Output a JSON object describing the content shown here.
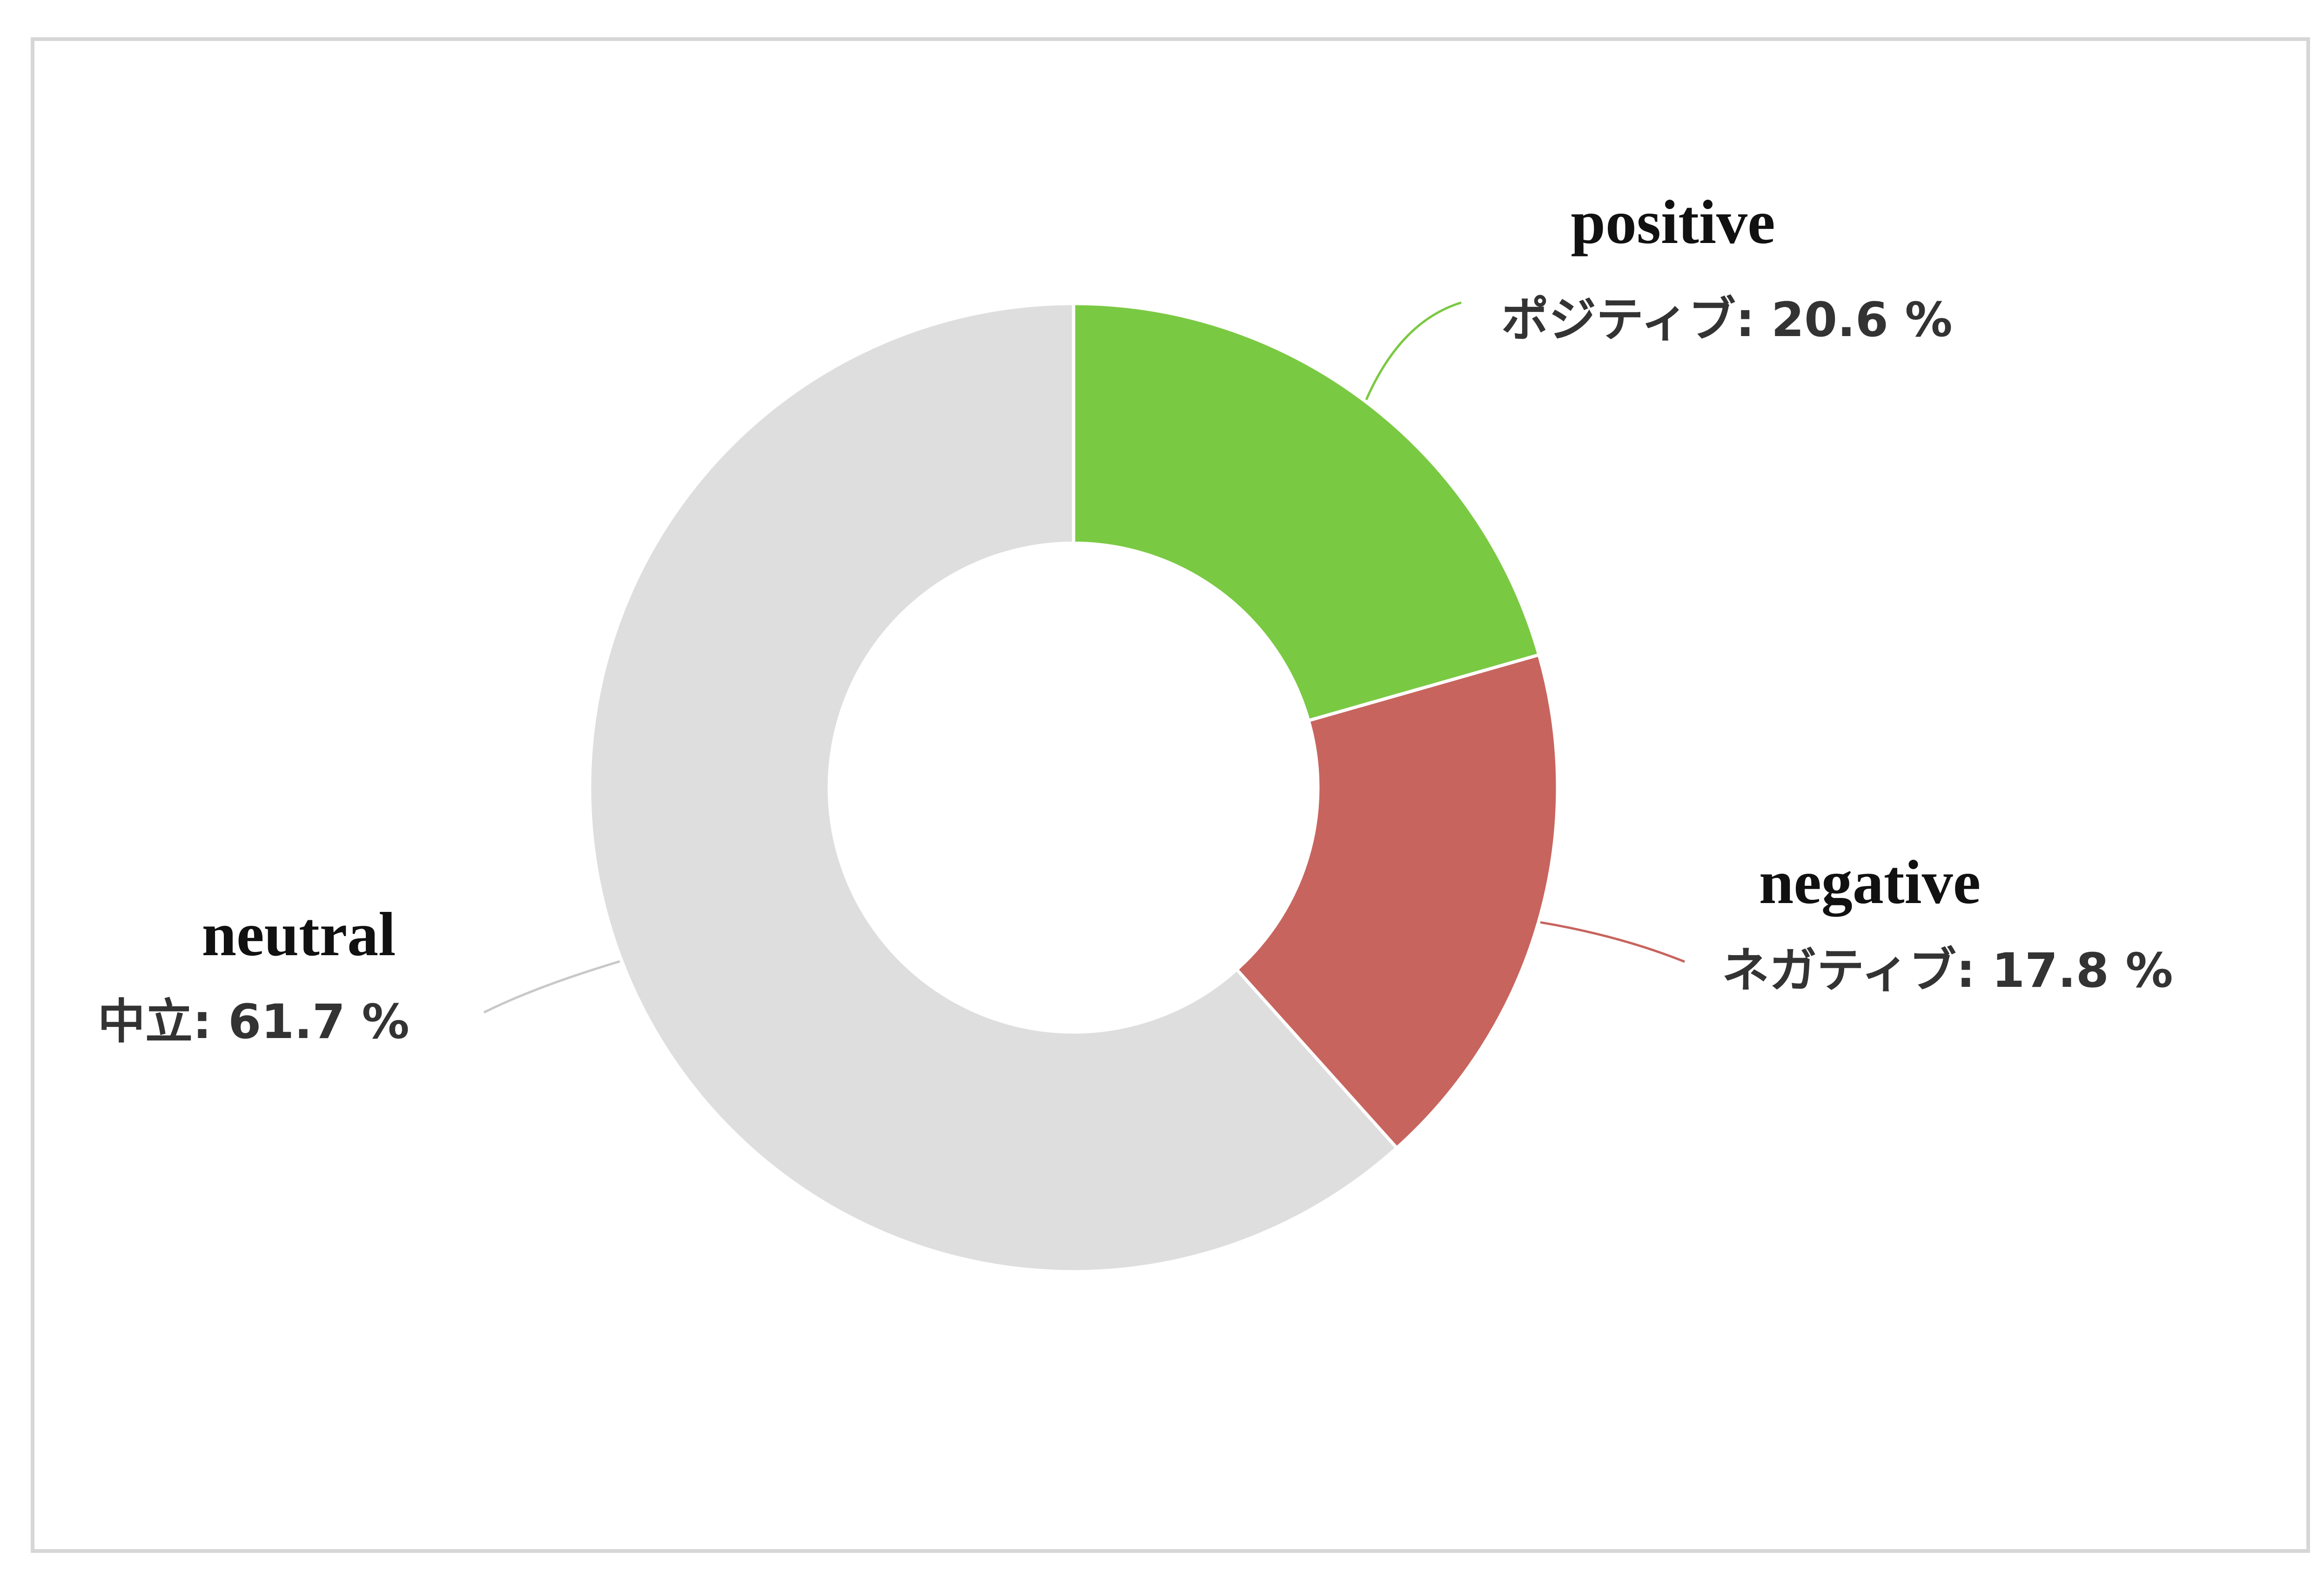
{
  "chart_data": {
    "type": "pie",
    "subtype": "donut",
    "title": "",
    "legend": "none",
    "start_angle_deg": 0,
    "direction": "clockwise",
    "slices": [
      {
        "key": "positive",
        "name": "positive",
        "label": "ポジティブ",
        "value": 20.6,
        "display": "ポジティブ: 20.6 %",
        "color": "#7ac943"
      },
      {
        "key": "negative",
        "name": "negative",
        "label": "ネガティブ",
        "value": 17.8,
        "display": "ネガティブ: 17.8 %",
        "color": "#c8645e"
      },
      {
        "key": "neutral",
        "name": "neutral",
        "label": "中立",
        "value": 61.7,
        "display": "中立: 61.7 %",
        "color": "#dedede"
      }
    ]
  },
  "colors": {
    "background": "#ffffff",
    "frame_border": "#d6d6d6",
    "slice_separator": "#ffffff"
  }
}
